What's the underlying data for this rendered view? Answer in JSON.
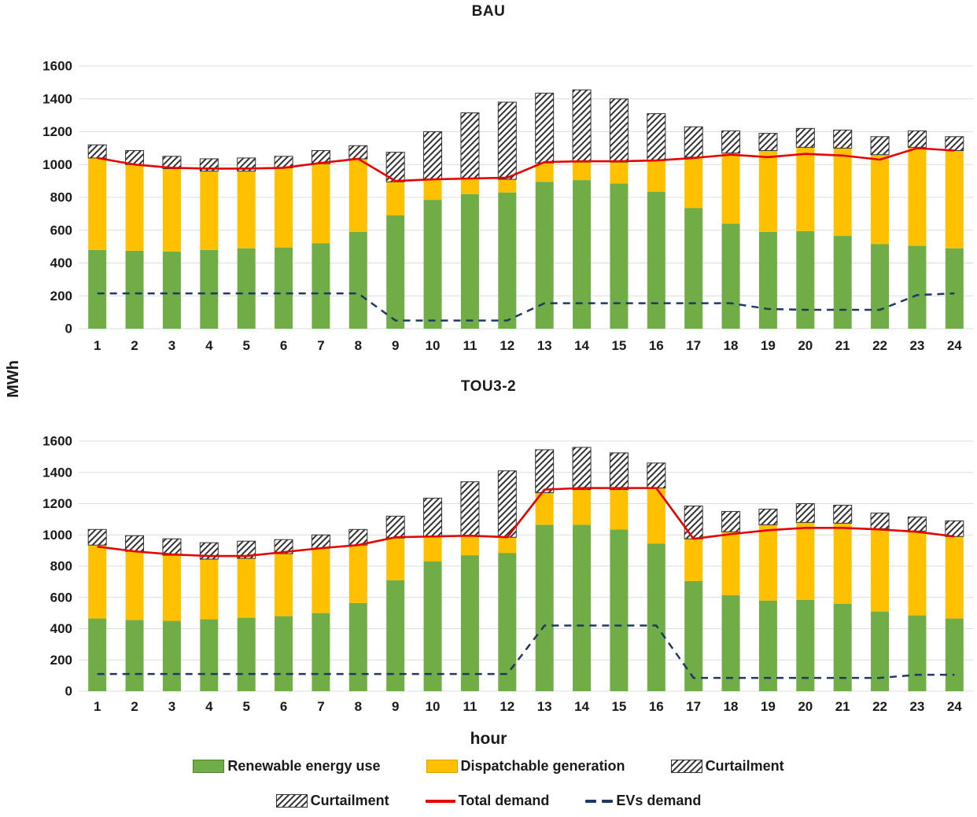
{
  "axis": {
    "y_label": "MWh",
    "x_label": "hour"
  },
  "colors": {
    "renewable": "#70ad47",
    "dispatchable": "#ffc000",
    "hatch_stroke": "#333333",
    "total_demand": "#e60000",
    "evs_demand": "#1f3864",
    "gridline": "#dcdcdc"
  },
  "legend": {
    "row1": [
      {
        "label": "Renewable energy use",
        "swatch": "green-box"
      },
      {
        "label": "Dispatchable generation",
        "swatch": "yellow-box"
      },
      {
        "label": "Curtailment",
        "swatch": "hatch-box"
      }
    ],
    "row2": [
      {
        "label": "Curtailment",
        "swatch": "hatch-box"
      },
      {
        "label": "Total demand",
        "swatch": "red-line"
      },
      {
        "label": "EVs demand",
        "swatch": "navy-dashes"
      }
    ]
  },
  "chart_data": [
    {
      "type": "bar",
      "title": "BAU",
      "stacked": true,
      "grid": "horizontal",
      "legend_position": "bottom-shared",
      "categories": [
        1,
        2,
        3,
        4,
        5,
        6,
        7,
        8,
        9,
        10,
        11,
        12,
        13,
        14,
        15,
        16,
        17,
        18,
        19,
        20,
        21,
        22,
        23,
        24
      ],
      "ylim": [
        0,
        1600
      ],
      "ytick_step": 200,
      "xlabel": "hour",
      "ylabel": "MWh",
      "series": [
        {
          "name": "Renewable energy use",
          "style": "bar",
          "color": "#70ad47",
          "values": [
            480,
            475,
            470,
            480,
            490,
            495,
            520,
            590,
            690,
            785,
            820,
            830,
            895,
            905,
            885,
            835,
            735,
            640,
            590,
            595,
            565,
            515,
            505,
            490
          ]
        },
        {
          "name": "Dispatchable generation",
          "style": "bar",
          "color": "#ffc000",
          "values": [
            560,
            525,
            505,
            480,
            470,
            485,
            485,
            445,
            205,
            125,
            95,
            80,
            115,
            110,
            130,
            190,
            310,
            430,
            495,
            510,
            535,
            545,
            600,
            595
          ]
        },
        {
          "name": "Curtailment",
          "style": "bar-hatch",
          "color": "#333333",
          "values": [
            80,
            85,
            75,
            75,
            80,
            70,
            80,
            80,
            180,
            290,
            400,
            470,
            425,
            440,
            385,
            285,
            185,
            135,
            105,
            115,
            110,
            110,
            100,
            85
          ]
        },
        {
          "name": "Total demand",
          "style": "line",
          "color": "#e60000",
          "values": [
            1040,
            1000,
            980,
            975,
            975,
            980,
            1010,
            1035,
            900,
            910,
            915,
            920,
            1015,
            1020,
            1020,
            1025,
            1040,
            1060,
            1045,
            1065,
            1055,
            1030,
            1100,
            1085
          ]
        },
        {
          "name": "EVs demand",
          "style": "line-dashed",
          "color": "#1f3864",
          "values": [
            215,
            215,
            215,
            215,
            215,
            215,
            215,
            215,
            50,
            50,
            50,
            50,
            155,
            155,
            155,
            155,
            155,
            155,
            120,
            115,
            115,
            115,
            205,
            215
          ]
        }
      ]
    },
    {
      "type": "bar",
      "title": "TOU3-2",
      "stacked": true,
      "grid": "horizontal",
      "legend_position": "bottom-shared",
      "categories": [
        1,
        2,
        3,
        4,
        5,
        6,
        7,
        8,
        9,
        10,
        11,
        12,
        13,
        14,
        15,
        16,
        17,
        18,
        19,
        20,
        21,
        22,
        23,
        24
      ],
      "ylim": [
        0,
        1600
      ],
      "ytick_step": 200,
      "xlabel": "hour",
      "ylabel": "MWh",
      "series": [
        {
          "name": "Renewable energy use",
          "style": "bar",
          "color": "#70ad47",
          "values": [
            465,
            455,
            450,
            460,
            470,
            480,
            500,
            565,
            710,
            830,
            870,
            885,
            1065,
            1065,
            1035,
            945,
            705,
            615,
            580,
            585,
            560,
            510,
            485,
            465
          ]
        },
        {
          "name": "Dispatchable generation",
          "style": "bar",
          "color": "#ffc000",
          "values": [
            470,
            440,
            420,
            385,
            380,
            400,
            415,
            370,
            270,
            160,
            125,
            100,
            205,
            225,
            255,
            355,
            270,
            405,
            485,
            495,
            515,
            530,
            540,
            525
          ]
        },
        {
          "name": "Curtailment",
          "style": "bar-hatch",
          "color": "#333333",
          "values": [
            100,
            100,
            105,
            105,
            110,
            90,
            85,
            100,
            140,
            245,
            345,
            425,
            275,
            270,
            235,
            160,
            210,
            130,
            100,
            120,
            115,
            100,
            90,
            100
          ]
        },
        {
          "name": "Total demand",
          "style": "line",
          "color": "#e60000",
          "values": [
            925,
            895,
            875,
            865,
            865,
            890,
            915,
            935,
            985,
            990,
            995,
            985,
            1290,
            1300,
            1300,
            1300,
            975,
            1005,
            1030,
            1045,
            1045,
            1035,
            1020,
            990
          ]
        },
        {
          "name": "EVs demand",
          "style": "line-dashed",
          "color": "#1f3864",
          "values": [
            110,
            110,
            110,
            110,
            110,
            110,
            110,
            110,
            110,
            110,
            110,
            110,
            420,
            420,
            420,
            420,
            85,
            85,
            85,
            85,
            85,
            85,
            105,
            105
          ]
        }
      ]
    }
  ]
}
